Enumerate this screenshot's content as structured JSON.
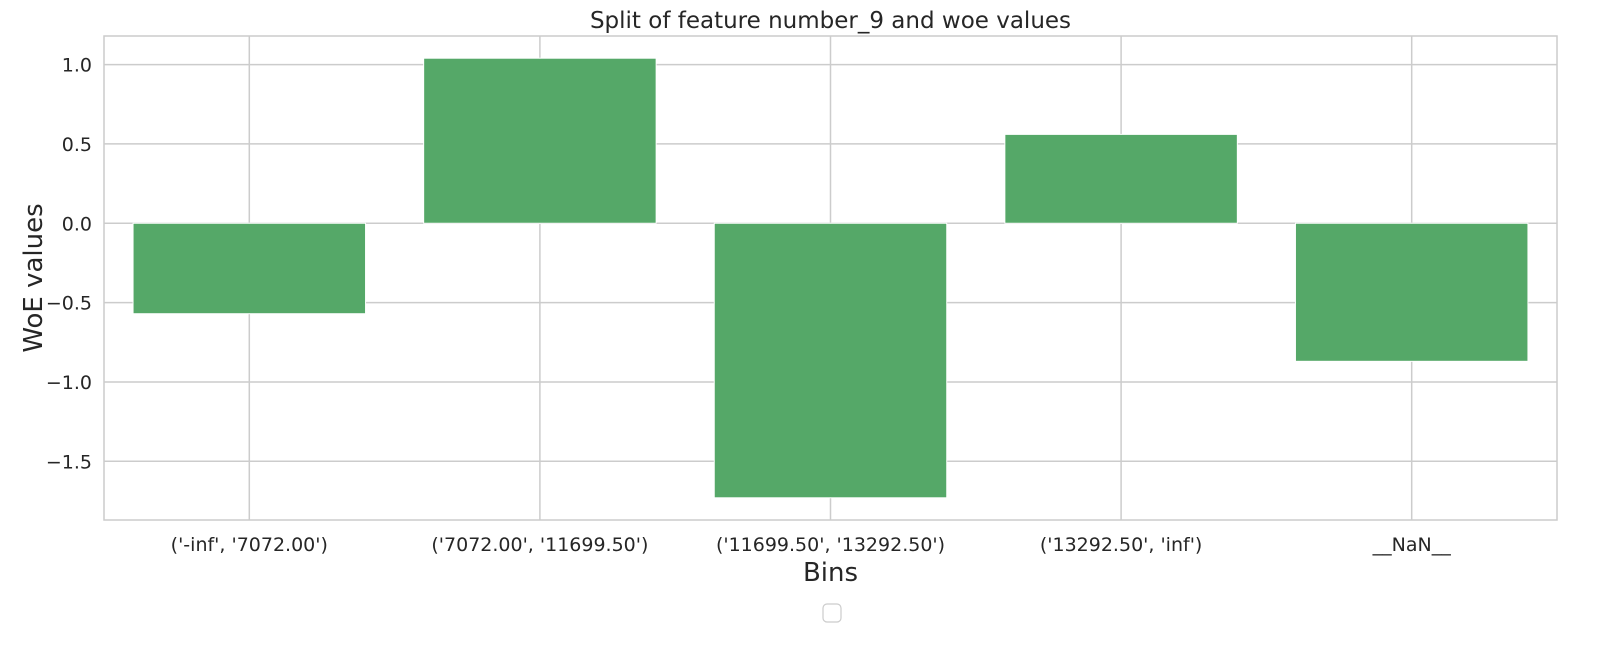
{
  "chart_data": {
    "type": "bar",
    "title": "Split of feature number_9 and woe values",
    "xlabel": "Bins",
    "ylabel": "WoE values",
    "categories": [
      "('-inf', '7072.00')",
      "('7072.00', '11699.50')",
      "('11699.50', '13292.50')",
      "('13292.50', 'inf')",
      "__NaN__"
    ],
    "values": [
      -0.57,
      1.04,
      -1.73,
      0.56,
      -0.87
    ],
    "ylim": [
      -1.87,
      1.18
    ],
    "yticks": [
      1.0,
      0.5,
      0.0,
      -0.5,
      -1.0,
      -1.5
    ],
    "ytick_labels": [
      "1.0",
      "0.5",
      "0.0",
      "−0.5",
      "−1.0",
      "−1.5"
    ],
    "grid": true,
    "legend": "bottom-center, empty",
    "colors": {
      "bar": "#55a868",
      "grid": "#cccccc",
      "spine": "#cccccc"
    }
  }
}
